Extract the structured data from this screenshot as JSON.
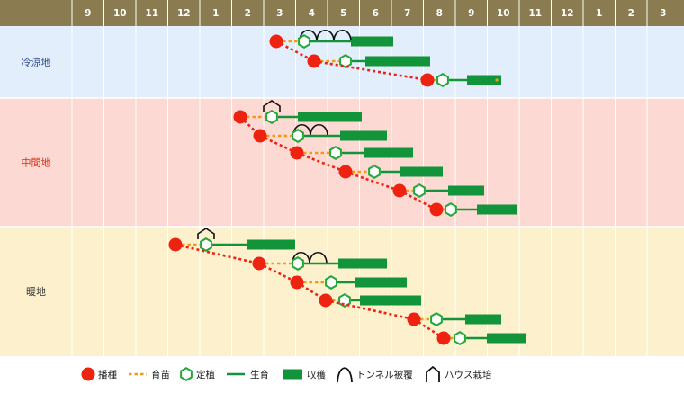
{
  "colors": {
    "header": "#8a7b51",
    "sow": "#ee2211",
    "seedling": "#f09a16",
    "transplant": "#22a83a",
    "growth": "#11943a",
    "harvest": "#11943a",
    "cold_bg": "#e2eefb",
    "cold_text": "#2d4d8c",
    "mid_bg": "#fcd9d2",
    "mid_text": "#d2331c",
    "warm_bg": "#fcf0cd",
    "warm_text": "#333333",
    "grid": "#ffffff"
  },
  "months": [
    "9",
    "10",
    "11",
    "12",
    "1",
    "2",
    "3",
    "4",
    "5",
    "6",
    "7",
    "8",
    "9",
    "10",
    "11",
    "12",
    "1",
    "2",
    "3"
  ],
  "regions": [
    {
      "label": "冷涼地",
      "key": "cold"
    },
    {
      "label": "中間地",
      "key": "mid"
    },
    {
      "label": "暖地",
      "key": "warm"
    }
  ],
  "legend": {
    "sow": "播種",
    "seedling": "育苗",
    "transplant": "定植",
    "growth": "生育",
    "harvest": "収穫",
    "tunnel": "トンネル被覆",
    "house": "ハウス栽培"
  }
}
